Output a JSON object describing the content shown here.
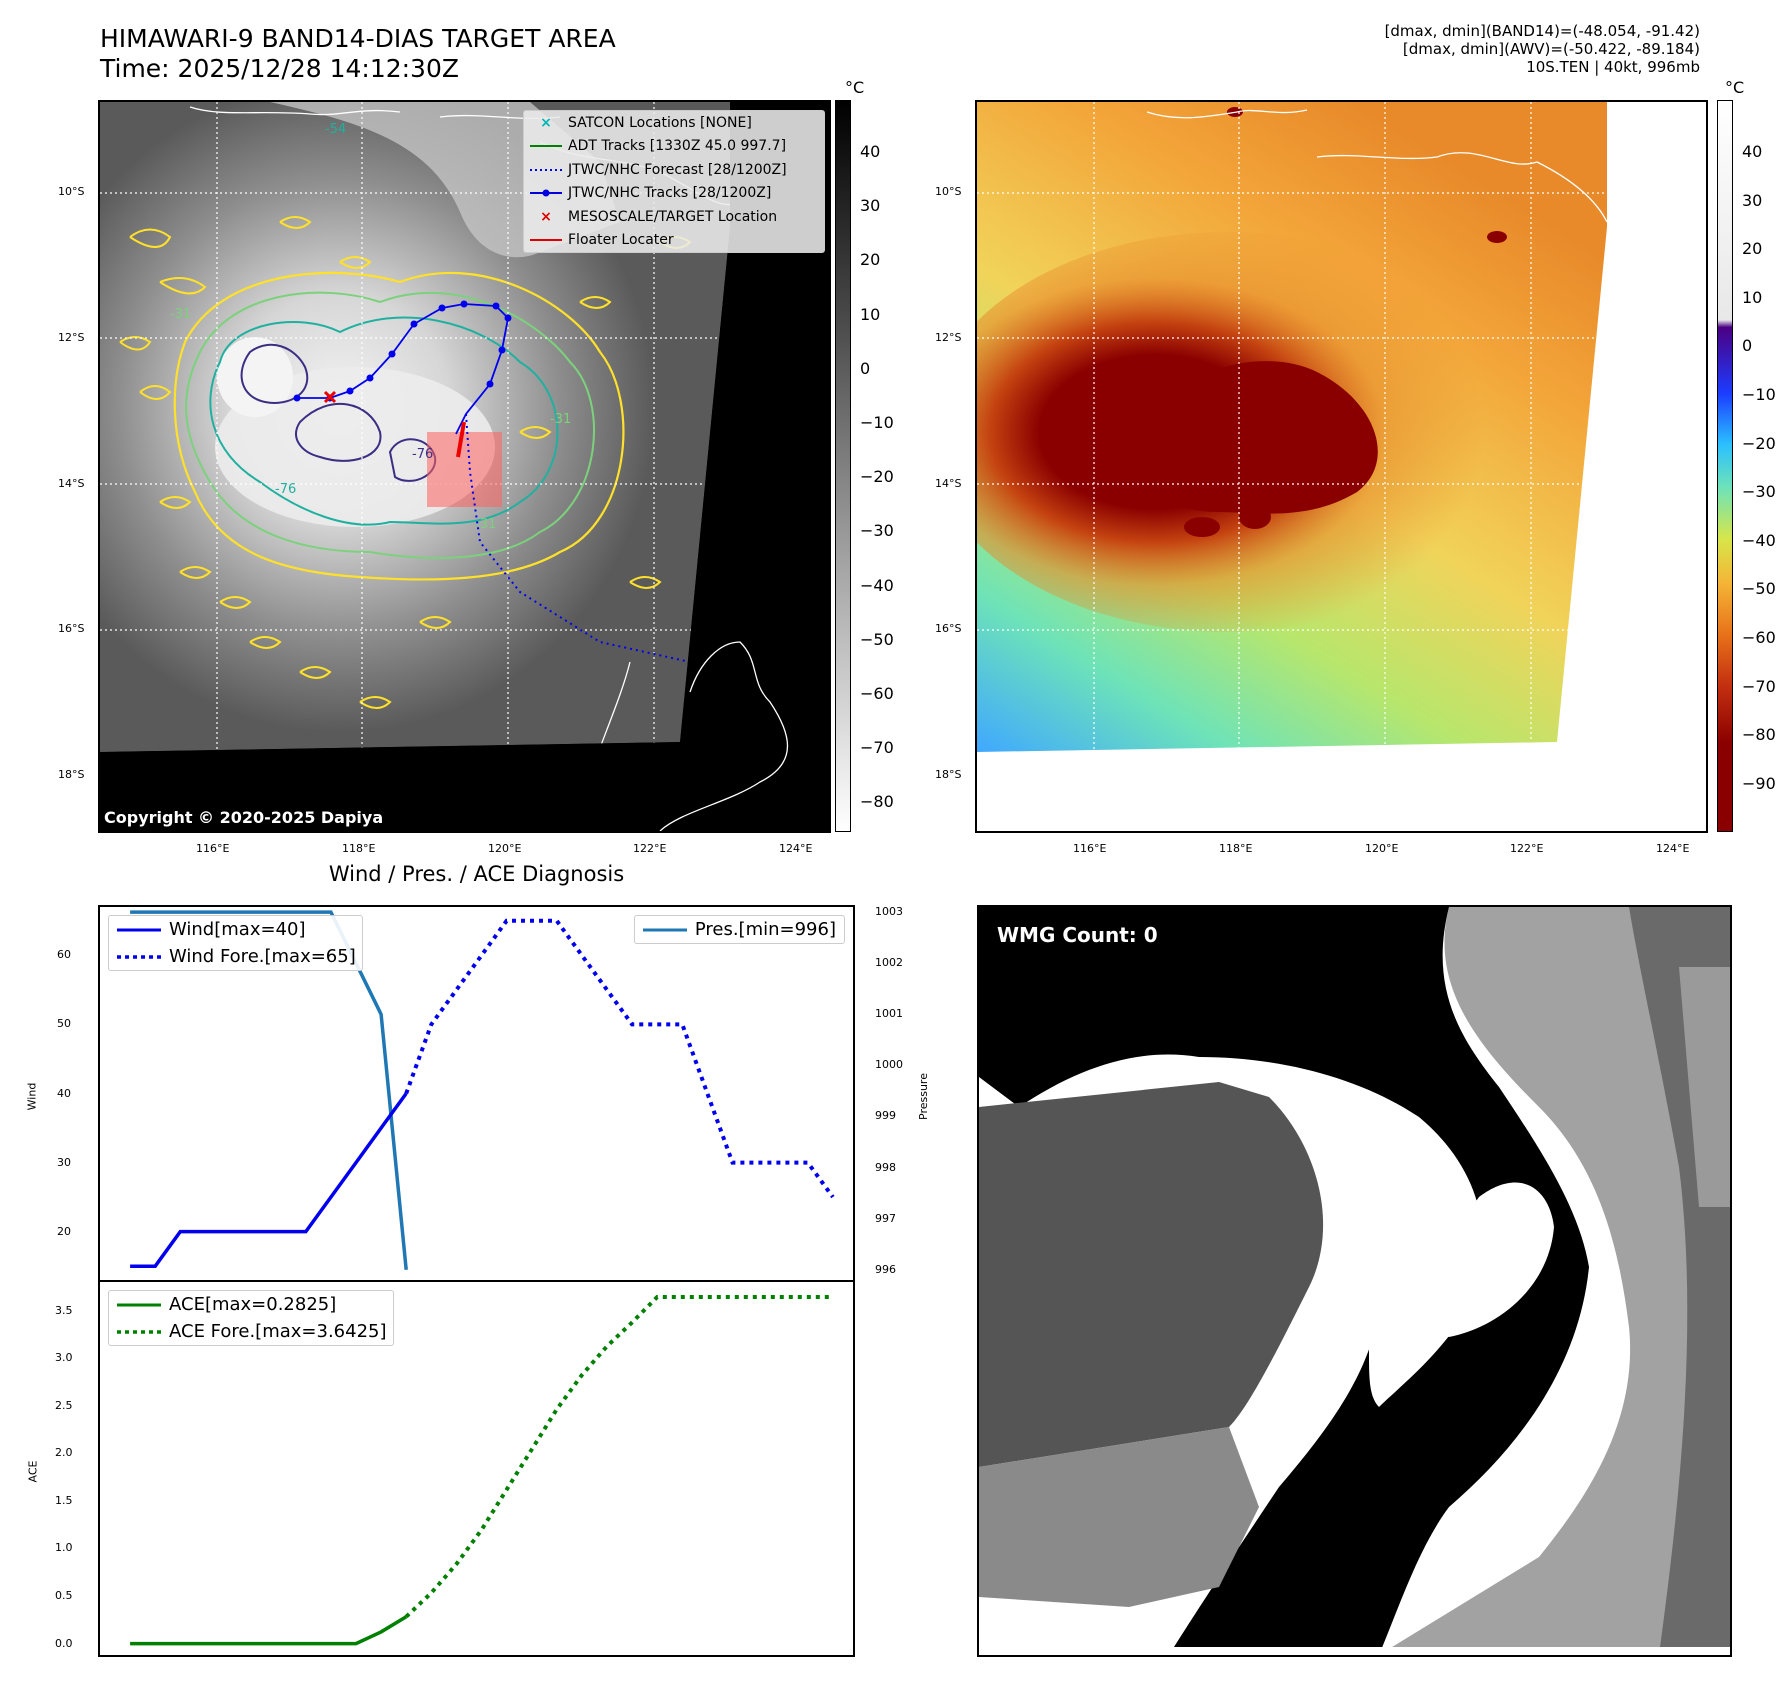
{
  "header": {
    "title_line1": "HIMAWARI-9 BAND14-DIAS TARGET AREA",
    "title_line2": "Time: 2025/12/28 14:12:30Z",
    "info_line1": "[dmax, dmin](BAND14)=(-48.054, -91.42)",
    "info_line2": "[dmax, dmin](AWV)=(-50.422, -89.184)",
    "info_line3": "10S.TEN | 40kt, 996mb"
  },
  "map": {
    "lat_labels": [
      "10°S",
      "12°S",
      "14°S",
      "16°S",
      "18°S"
    ],
    "lon_labels": [
      "116°E",
      "118°E",
      "120°E",
      "122°E",
      "124°E"
    ],
    "copyright": "Copyright © 2020-2025 Dapiya",
    "contour_labels": [
      "-54",
      "-31",
      "-76",
      "-76",
      "-31",
      "-31"
    ],
    "legend": [
      {
        "label": "SATCON Locations [NONE]",
        "symbol": "x",
        "color": "#00b5b5"
      },
      {
        "label": "ADT Tracks [1330Z 45.0 997.7]",
        "symbol": "line",
        "color": "#008000"
      },
      {
        "label": "JTWC/NHC Forecast [28/1200Z]",
        "symbol": "dotted",
        "color": "#0000dd"
      },
      {
        "label": "JTWC/NHC Tracks [28/1200Z]",
        "symbol": "dotline",
        "color": "#0000dd"
      },
      {
        "label": "MESOSCALE/TARGET Location",
        "symbol": "x",
        "color": "#dd0000"
      },
      {
        "label": "Floater Locater",
        "symbol": "line",
        "color": "#dd0000"
      }
    ]
  },
  "colorbar_gray": {
    "unit": "°C",
    "ticks": [
      "40",
      "30",
      "20",
      "10",
      "0",
      "−10",
      "−20",
      "−30",
      "−40",
      "−50",
      "−60",
      "−70",
      "−80"
    ]
  },
  "colorbar_color": {
    "unit": "°C",
    "ticks": [
      "40",
      "30",
      "20",
      "10",
      "0",
      "−10",
      "−20",
      "−30",
      "−40",
      "−50",
      "−60",
      "−70",
      "−80",
      "−90"
    ]
  },
  "diag": {
    "title": "Wind / Pres. / ACE Diagnosis",
    "wind_ylabel": "Wind",
    "pres_ylabel": "Pressure",
    "ace_ylabel": "ACE",
    "wind_legend": [
      "Wind[max=40]",
      "Wind Fore.[max=65]"
    ],
    "pres_legend": [
      "Pres.[min=996]"
    ],
    "ace_legend": [
      "ACE[max=0.2825]",
      "ACE Fore.[max=3.6425]"
    ]
  },
  "wmg": {
    "label": "WMG Count: 0"
  },
  "chart_data": [
    {
      "type": "line",
      "title": "Wind / Pres. / ACE Diagnosis",
      "ylabel": "Wind",
      "ylim": [
        13,
        67
      ],
      "series": [
        {
          "name": "Wind[max=40]",
          "color": "#0000ee",
          "style": "solid",
          "x": [
            0,
            1,
            2,
            3,
            4,
            5,
            6,
            7,
            8,
            9,
            10,
            11,
            12
          ],
          "values": [
            15,
            15,
            20,
            20,
            20,
            20,
            20,
            20,
            25,
            30,
            35,
            40,
            null
          ]
        },
        {
          "name": "Wind Fore.[max=65]",
          "color": "#0000ee",
          "style": "dotted",
          "x": [
            11,
            12,
            13,
            14,
            15,
            16,
            17,
            18,
            19,
            20,
            21,
            22,
            23,
            24,
            25,
            26,
            27,
            28
          ],
          "values": [
            40,
            50,
            55,
            60,
            65,
            65,
            65,
            60,
            55,
            50,
            50,
            50,
            40,
            30,
            30,
            30,
            30,
            25
          ]
        }
      ]
    },
    {
      "type": "line",
      "ylabel": "Pressure",
      "ylim": [
        995.8,
        1003.1
      ],
      "series": [
        {
          "name": "Pres.[min=996]",
          "color": "#1f77b4",
          "style": "solid",
          "x": [
            0,
            1,
            2,
            3,
            4,
            5,
            6,
            7,
            8,
            9,
            10,
            11
          ],
          "values": [
            1003,
            1003,
            1003,
            1003,
            1003,
            1003,
            1003,
            1003,
            1003,
            1002,
            1001,
            996
          ]
        }
      ]
    },
    {
      "type": "line",
      "ylabel": "ACE",
      "ylim": [
        -0.12,
        3.8
      ],
      "series": [
        {
          "name": "ACE[max=0.2825]",
          "color": "#008000",
          "style": "solid",
          "x": [
            0,
            1,
            2,
            3,
            4,
            5,
            6,
            7,
            8,
            9,
            10,
            11
          ],
          "values": [
            0,
            0,
            0,
            0,
            0,
            0,
            0,
            0,
            0,
            0,
            0.1225,
            0.2825
          ]
        },
        {
          "name": "ACE Fore.[max=3.6425]",
          "color": "#008000",
          "style": "dotted",
          "x": [
            11,
            12,
            13,
            14,
            15,
            16,
            17,
            18,
            19,
            20,
            21,
            22,
            23,
            24,
            25,
            26,
            27,
            28
          ],
          "values": [
            0.2825,
            0.5325,
            0.835,
            1.195,
            1.6175,
            2.04,
            2.4625,
            2.8225,
            3.125,
            3.375,
            3.6425,
            3.6425,
            3.6425,
            3.6425,
            3.6425,
            3.6425,
            3.6425,
            3.6425
          ]
        }
      ]
    }
  ]
}
